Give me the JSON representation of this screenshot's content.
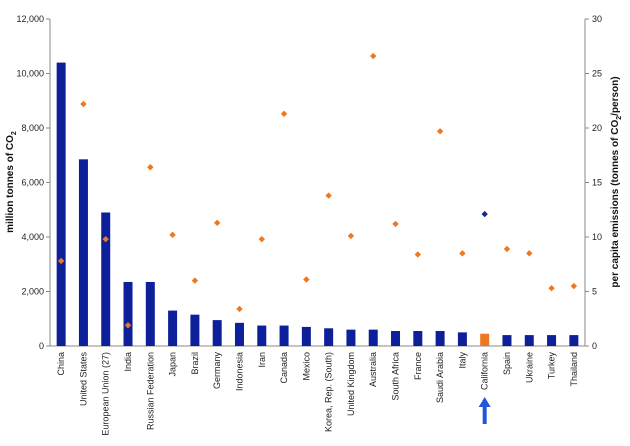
{
  "chart_data": {
    "type": "bar",
    "title": "",
    "categories": [
      "China",
      "United States",
      "European Union (27)",
      "India",
      "Russian Federation",
      "Japan",
      "Brazil",
      "Germany",
      "Indonesia",
      "Iran",
      "Canada",
      "Mexico",
      "Korea, Rep. (South)",
      "United Kingdom",
      "Australia",
      "South Africa",
      "France",
      "Saudi Arabia",
      "Italy",
      "California",
      "Spain",
      "Ukraine",
      "Turkey",
      "Thailand"
    ],
    "series": [
      {
        "name": "",
        "kind": "bar",
        "axis": "left",
        "values": [
          10400,
          6850,
          4900,
          2350,
          2350,
          1300,
          1150,
          950,
          850,
          750,
          750,
          700,
          650,
          600,
          600,
          550,
          550,
          550,
          500,
          450,
          400,
          400,
          400,
          400
        ]
      },
      {
        "name": "",
        "kind": "point",
        "axis": "right",
        "values": [
          7.8,
          22.2,
          9.8,
          1.9,
          16.4,
          10.2,
          6.0,
          11.3,
          3.4,
          9.8,
          21.3,
          6.1,
          13.8,
          10.1,
          26.6,
          11.2,
          8.4,
          19.7,
          8.5,
          12.1,
          8.9,
          8.5,
          5.3,
          5.5
        ]
      }
    ],
    "highlight_category": "California",
    "highlight_colors": {
      "bar": "#ee7722",
      "point": "#1a2a8a",
      "arrow": "#2255dd"
    },
    "colors": {
      "bar": "#0d1f99",
      "point": "#ee7722"
    },
    "ylabel": "million tonnes of CO",
    "ylabel_sub": "2",
    "y2label_pre": "per capita emissions (tonnes of CO",
    "y2label_sub": "2",
    "y2label_post": "/person)",
    "ylim": [
      0,
      12000
    ],
    "y2lim": [
      0,
      30
    ],
    "yticks": [
      "0",
      "2,000",
      "4,000",
      "6,000",
      "8,000",
      "10,000",
      "12,000"
    ],
    "y2ticks": [
      "0",
      "5",
      "10",
      "15",
      "20",
      "25",
      "30"
    ],
    "grid": false,
    "legend": "none"
  }
}
